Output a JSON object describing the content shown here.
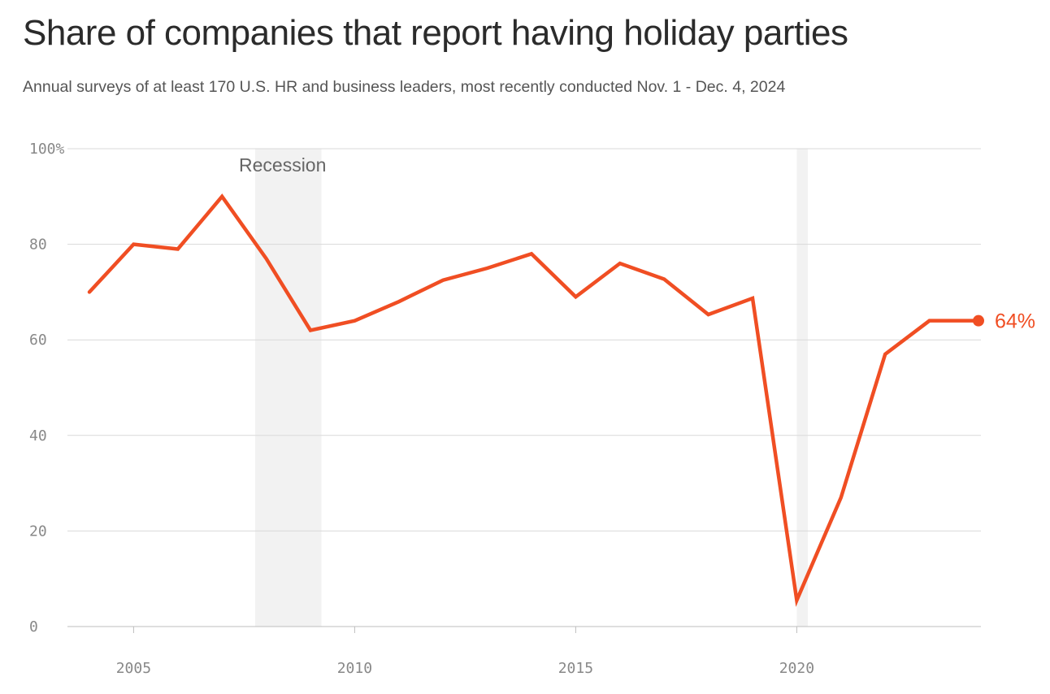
{
  "title": "Share of companies that report having holiday parties",
  "subtitle": "Annual surveys of at least 170 U.S. HR and business leaders, most recently conducted Nov. 1 - Dec. 4, 2024",
  "colors": {
    "line": "#f04e23",
    "grid": "#d9d9d9",
    "shade": "#f2f2f2",
    "tick": "#888888"
  },
  "chart_data": {
    "type": "line",
    "title": "Share of companies that report having holiday parties",
    "xlabel": "",
    "ylabel": "",
    "x": [
      2004,
      2005,
      2006,
      2007,
      2008,
      2009,
      2010,
      2011,
      2012,
      2013,
      2014,
      2015,
      2016,
      2017,
      2018,
      2019,
      2020,
      2021,
      2022,
      2023,
      2024
    ],
    "values": [
      70,
      80,
      79,
      90,
      77,
      62,
      64,
      68,
      72.5,
      75,
      78,
      69,
      76,
      72.7,
      65.3,
      68.7,
      5.5,
      27,
      57,
      64,
      64
    ],
    "xlim": [
      2003.0,
      2024.5
    ],
    "ylim": [
      0,
      100
    ],
    "yticks": [
      0,
      20,
      40,
      60,
      80,
      100
    ],
    "ytick_labels": [
      "0",
      "20",
      "40",
      "60",
      "80",
      "100%"
    ],
    "xticks": [
      2005,
      2010,
      2015,
      2020
    ],
    "xtick_labels": [
      "2005",
      "2010",
      "2015",
      "2020"
    ],
    "grid": true,
    "legend": "none",
    "shaded_periods": [
      {
        "label": "Recession",
        "start": 2007.75,
        "end": 2009.25
      },
      {
        "label": "",
        "start": 2020.0,
        "end": 2020.25
      }
    ],
    "end_label": "64%"
  }
}
